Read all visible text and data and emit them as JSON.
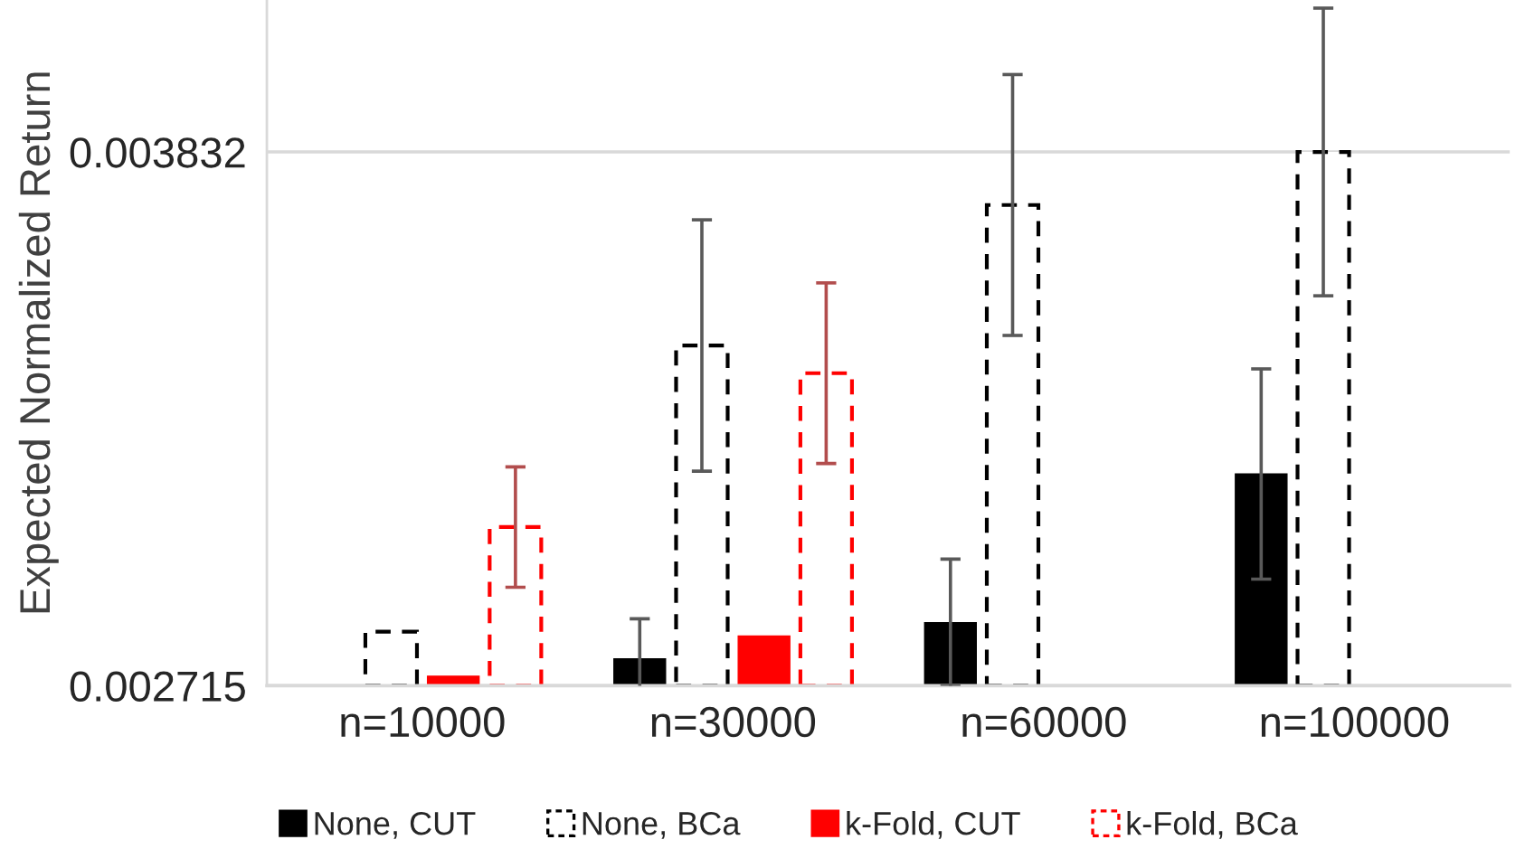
{
  "chart_data": {
    "type": "bar",
    "ylabel": "Expected Normalized Return",
    "categories": [
      "n=10000",
      "n=30000",
      "n=60000",
      "n=100000"
    ],
    "series": [
      {
        "name": "None, CUT",
        "color": "#000000",
        "line_style": "solid",
        "values": [
          null,
          0.002771,
          0.002847,
          0.003158
        ],
        "errors": [
          null,
          8.4e-05,
          0.000133,
          0.00022
        ]
      },
      {
        "name": "None, BCa",
        "color": "#000000",
        "line_style": "dashed",
        "values": [
          0.002828,
          0.003427,
          0.003721,
          0.003832
        ],
        "errors": [
          null,
          0.000263,
          0.000273,
          0.000301
        ]
      },
      {
        "name": "k-Fold, CUT",
        "color": "#ff0000",
        "line_style": "solid",
        "values": [
          0.002735,
          0.002819,
          null,
          null
        ]
      },
      {
        "name": "k-Fold, BCa",
        "color": "#ff0000",
        "line_style": "dashed",
        "values": [
          0.003047,
          0.003369,
          null,
          null
        ],
        "errors": [
          0.000126,
          0.000189,
          null,
          null
        ]
      }
    ],
    "ylim": [
      0.002715,
      0.00415
    ],
    "yticks": [
      0.002715,
      0.003832
    ],
    "grid": "y",
    "legend": "bottom"
  }
}
